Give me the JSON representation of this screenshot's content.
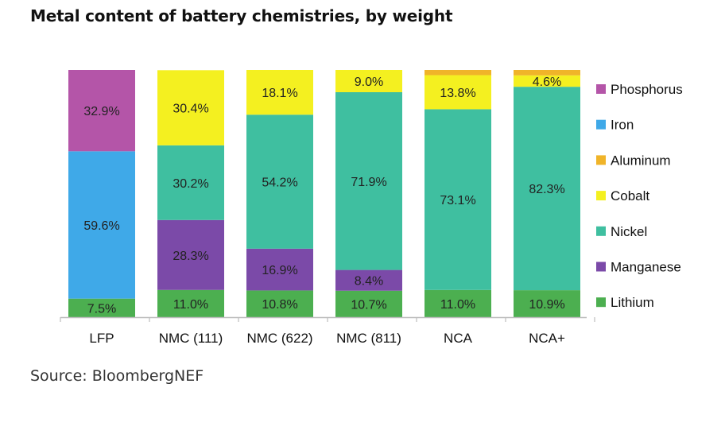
{
  "chart_data": {
    "type": "bar",
    "stacked": true,
    "title": "Metal content of battery chemistries, by weight",
    "source": "Source: BloombergNEF",
    "categories": [
      "LFP",
      "NMC (111)",
      "NMC (622)",
      "NMC (811)",
      "NCA",
      "NCA+"
    ],
    "ylim": [
      0,
      100
    ],
    "grid": false,
    "legend_position": "right",
    "series": [
      {
        "name": "Lithium",
        "color": "#4caf50",
        "values": [
          7.5,
          11.0,
          10.8,
          10.7,
          11.0,
          10.9
        ],
        "labels": [
          "7.5%",
          "11.0%",
          "10.8%",
          "10.7%",
          "11.0%",
          "10.9%"
        ]
      },
      {
        "name": "Manganese",
        "color": "#7b4aa8",
        "values": [
          0,
          28.3,
          16.9,
          8.4,
          0,
          0
        ],
        "labels": [
          "",
          "28.3%",
          "16.9%",
          "8.4%",
          "",
          ""
        ]
      },
      {
        "name": "Nickel",
        "color": "#3fbfa0",
        "values": [
          0,
          30.2,
          54.2,
          71.9,
          73.1,
          82.3
        ],
        "labels": [
          "",
          "30.2%",
          "54.2%",
          "71.9%",
          "73.1%",
          "82.3%"
        ]
      },
      {
        "name": "Cobalt",
        "color": "#f4f020",
        "values": [
          0,
          30.4,
          18.1,
          9.0,
          13.8,
          4.6
        ],
        "labels": [
          "",
          "30.4%",
          "18.1%",
          "9.0%",
          "13.8%",
          "4.6%"
        ]
      },
      {
        "name": "Aluminum",
        "color": "#f0b429",
        "values": [
          0,
          0,
          0,
          0,
          2.1,
          2.2
        ],
        "labels": [
          "",
          "",
          "",
          "",
          "",
          ""
        ]
      },
      {
        "name": "Iron",
        "color": "#3fa9e8",
        "values": [
          59.6,
          0,
          0,
          0,
          0,
          0
        ],
        "labels": [
          "59.6%",
          "",
          "",
          "",
          "",
          ""
        ]
      },
      {
        "name": "Phosphorus",
        "color": "#b455a8",
        "values": [
          32.9,
          0,
          0,
          0,
          0,
          0
        ],
        "labels": [
          "32.9%",
          "",
          "",
          "",
          "",
          ""
        ]
      }
    ],
    "legend_order": [
      "Phosphorus",
      "Iron",
      "Aluminum",
      "Cobalt",
      "Nickel",
      "Manganese",
      "Lithium"
    ]
  }
}
